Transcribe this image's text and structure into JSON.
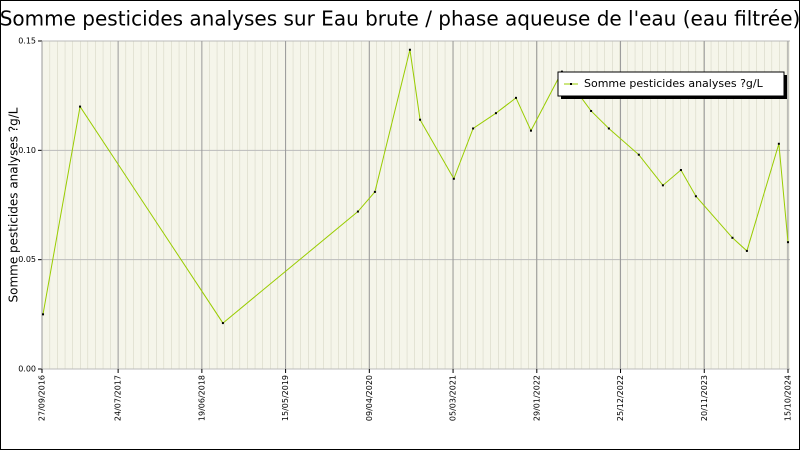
{
  "chart_data": {
    "type": "line",
    "title": "Somme pesticides analyses sur Eau brute / phase aqueuse de l'eau (eau filtrée)",
    "y_label": "Somme pesticides analyses ?g/L",
    "x": [
      "2016-10-01",
      "2017-02-24",
      "2018-09-10",
      "2020-02-24",
      "2020-05-01",
      "2020-09-16",
      "2020-10-26",
      "2021-03-08",
      "2021-05-23",
      "2021-08-21",
      "2021-11-08",
      "2022-01-06",
      "2022-05-08",
      "2022-08-31",
      "2022-11-09",
      "2023-03-07",
      "2023-06-10",
      "2023-08-20",
      "2023-10-18",
      "2024-03-10",
      "2024-05-06",
      "2024-09-09",
      "2024-10-15"
    ],
    "series": [
      {
        "name": "Somme pesticides analyses ?g/L",
        "color": "#99cc00",
        "values": [
          0.025,
          0.12,
          0.021,
          0.072,
          0.081,
          0.146,
          0.114,
          0.087,
          0.11,
          0.117,
          0.124,
          0.109,
          0.136,
          0.118,
          0.11,
          0.098,
          0.084,
          0.091,
          0.079,
          0.06,
          0.054,
          0.103,
          0.058
        ]
      }
    ],
    "xlim": [
      "2016-09-27",
      "2024-10-15"
    ],
    "xticks": [
      {
        "value": "2016-09-27",
        "label": "27/09/2016"
      },
      {
        "value": "2017-07-24",
        "label": "24/07/2017"
      },
      {
        "value": "2018-06-19",
        "label": "19/06/2018"
      },
      {
        "value": "2019-05-15",
        "label": "15/05/2019"
      },
      {
        "value": "2020-04-09",
        "label": "09/04/2020"
      },
      {
        "value": "2021-03-05",
        "label": "05/03/2021"
      },
      {
        "value": "2022-01-29",
        "label": "29/01/2022"
      },
      {
        "value": "2022-12-25",
        "label": "25/12/2022"
      },
      {
        "value": "2023-11-20",
        "label": "20/11/2023"
      },
      {
        "value": "2024-10-15",
        "label": "15/10/2024"
      }
    ],
    "ylim": [
      0,
      0.15
    ],
    "yticks": [
      {
        "value": 0,
        "label": "0.00"
      },
      {
        "value": 0.05,
        "label": "0.05"
      },
      {
        "value": 0.1,
        "label": "0.10"
      },
      {
        "value": 0.15,
        "label": "0.15"
      }
    ],
    "grid": true,
    "legend": "upper right"
  }
}
